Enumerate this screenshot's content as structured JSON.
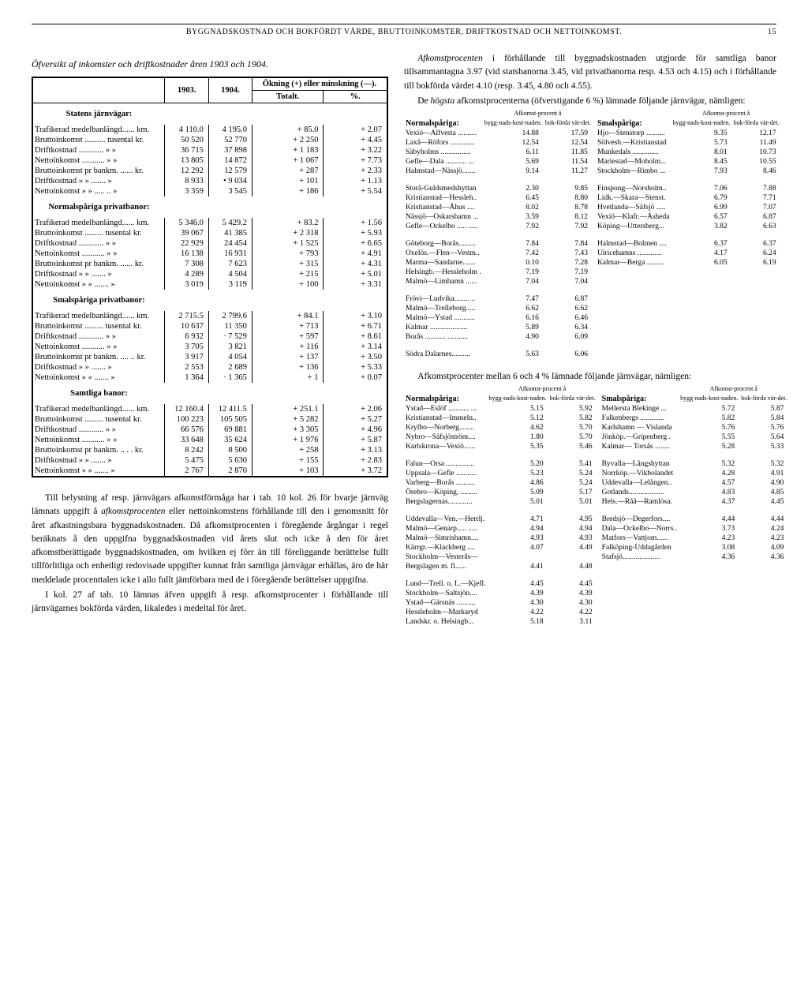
{
  "page": {
    "header": "BYGGNADSKOSTNAD OCH BOKFÖRDT VÄRDE, BRUTTOINKOMSTER, DRIFTKOSTNAD OCH NETTOINKOMST.",
    "page_number": "15"
  },
  "left": {
    "table_title": "Öfversikt af inkomster och driftkostnader åren 1903 och 1904.",
    "col_headers": {
      "y1903": "1903.",
      "y1904": "1904.",
      "change": "Ökning (+) eller minskning (—).",
      "totalt": "Totalt.",
      "pct": "%."
    },
    "sections": [
      {
        "title": "Statens järnvägar:",
        "rows": [
          {
            "label": "Trafikerad medelbanlängd...... km.",
            "v1": "4 110.0",
            "v2": "4 195.0",
            "tot": "+   85.0",
            "pct": "+ 2.07"
          },
          {
            "label": "Bruttoinkomst .......... tusental kr.",
            "v1": "50 520",
            "v2": "52 770",
            "tot": "+ 2 250",
            "pct": "+ 4.45"
          },
          {
            "label": "Driftkostnad ............    »      »",
            "v1": "36 715",
            "v2": "37 898",
            "tot": "+ 1 183",
            "pct": "+ 3.22"
          },
          {
            "label": "Nettoinkomst ...........    »      »",
            "v1": "13 805",
            "v2": "14 872",
            "tot": "+ 1 067",
            "pct": "+ 7.73"
          },
          {
            "label": "Bruttoinkomst pr bankm. ...... kr.",
            "v1": "12 292",
            "v2": "12 579",
            "tot": "+    287",
            "pct": "+ 2.33"
          },
          {
            "label": "Driftkostnad    »    »   .......  »",
            "v1": "8 933",
            "v2": "•  9 034",
            "tot": "+    101",
            "pct": "+ 1.13"
          },
          {
            "label": "Nettoinkomst   »    »   ..... .. »",
            "v1": "3 359",
            "v2": "3 545",
            "tot": "+    186",
            "pct": "+ 5.54"
          }
        ]
      },
      {
        "title": "Normalspåriga privatbanor:",
        "rows": [
          {
            "label": "Trafikerad medelbanlängd...... km.",
            "v1": "5 346.0",
            "v2": "5 429.2",
            "tot": "+   83.2",
            "pct": "+ 1.56"
          },
          {
            "label": "Bruttoinkomst ......... tusental kr.",
            "v1": "39 067",
            "v2": "41 385",
            "tot": "+ 2 318",
            "pct": "+ 5.93"
          },
          {
            "label": "Driftkostnad ............    »      »",
            "v1": "22 929",
            "v2": "24 454",
            "tot": "+ 1 525",
            "pct": "+ 6.65"
          },
          {
            "label": "Nettoinkomst ...........    »      »",
            "v1": "16 138",
            "v2": "16 931",
            "tot": "+    793",
            "pct": "+ 4.91"
          },
          {
            "label": "Bruttoinkomst pr bankm. ...... kr.",
            "v1": "7 308",
            "v2": "7 623",
            "tot": "+    315",
            "pct": "+ 4.31"
          },
          {
            "label": "Driftkostnad    »    »   .......  »",
            "v1": "4 289",
            "v2": "4 504",
            "tot": "+    215",
            "pct": "+ 5.01"
          },
          {
            "label": "Nettoinkomst   »    »   .......  »",
            "v1": "3 019",
            "v2": "3 119",
            "tot": "+    100",
            "pct": "+ 3.31"
          }
        ]
      },
      {
        "title": "Smalspåriga privatbanor:",
        "rows": [
          {
            "label": "Trafikerad medelbanlängd...... km.",
            "v1": "2 715.5",
            "v2": "2 799.6",
            "tot": "+   84.1",
            "pct": "+ 3.10"
          },
          {
            "label": "Bruttoinkomst ......... tusental kr.",
            "v1": "10 637",
            "v2": "11 350",
            "tot": "+    713",
            "pct": "+ 6.71"
          },
          {
            "label": "Driftkostnad ............    »      »",
            "v1": "6 932",
            "v2": "·  7 529",
            "tot": "+    597",
            "pct": "+ 8.61"
          },
          {
            "label": "Nettoinkomst ...........    »      »",
            "v1": "3 705",
            "v2": "3 821",
            "tot": "+    116",
            "pct": "+ 3.14"
          },
          {
            "label": "Bruttoinkomst pr bankm. .... .. kr.",
            "v1": "3 917",
            "v2": "4 054",
            "tot": "+    137",
            "pct": "+ 3.50"
          },
          {
            "label": "Driftkostnad    »    »   .......  »",
            "v1": "2 553",
            "v2": "2 689",
            "tot": "+    136",
            "pct": "+ 5.33"
          },
          {
            "label": "Nettoinkomst   »    »   .......  »",
            "v1": "1 364",
            "v2": "· 1 365",
            "tot": "+      1",
            "pct": "+ 0.07"
          }
        ]
      },
      {
        "title": "Samtliga banor:",
        "rows": [
          {
            "label": "Trafikerad medelbanlängd...... km.",
            "v1": "12 160.4",
            "v2": "12 411.5",
            "tot": "+ 251.1",
            "pct": "+ 2.06"
          },
          {
            "label": "Bruttoinkomst ......... tusental kr.",
            "v1": "100 223",
            "v2": "105 505",
            "tot": "+ 5 282",
            "pct": "+ 5.27"
          },
          {
            "label": "Driftkostnad ............    »      »",
            "v1": "66 576",
            "v2": "69 881",
            "tot": "+ 3 305",
            "pct": "+ 4.96"
          },
          {
            "label": "Nettoinkomst ...........    »      »",
            "v1": "33 648",
            "v2": "35 624",
            "tot": "+ 1 976",
            "pct": "+ 5.87"
          },
          {
            "label": "Bruttoinkomst pr bankm. .. . . kr.",
            "v1": "8 242",
            "v2": "8 500",
            "tot": "+    258",
            "pct": "+ 3.13"
          },
          {
            "label": "Driftkostnad    »    »   .......  »",
            "v1": "5 475",
            "v2": "5 630",
            "tot": "+    155",
            "pct": "+ 2.83"
          },
          {
            "label": "Nettoinkomst   »    »   .......  »",
            "v1": "2 767",
            "v2": "2 870",
            "tot": "+    103",
            "pct": "+ 3.72"
          }
        ]
      }
    ],
    "body": [
      "Till belysning af resp. järnvägars afkomstförmåga har i tab. 10 kol. 26 för hvarje järnväg lämnats uppgift å <i>afkomstprocenten</i> eller nettoinkomstens förhållande till den i genomsnitt för året afkastningsbara byggnadskostnaden. Då afkomstprocenten i föregående årgångar i regel beräknats å den uppgifna byggnadskostnaden vid årets slut och icke å den för året afkomstberättigade byggnadskostnaden, om hvilken ej förr än till föreliggande berättelse fullt tillförlitliga och enhetligt redovisade uppgifter kunnat från samtliga järnvägar erhållas, äro de här meddelade procenttalen icke i allo fullt jämförbara med de i föregående berättelser uppgifna.",
      "I kol. 27 af tab. 10 lämnas äfven uppgift å resp. afkomstprocenter i förhållande till järnvägarnes bokförda värden, likaledes i medeltal för året."
    ]
  },
  "right": {
    "body_top": [
      "<i>Afkomstprocenten</i> i förhållande till byggnadskostnaden utgjorde för samtliga banor tillsammantagna 3.97 (vid statsbanorna 3.45, vid privatbanorna resp. 4.53 och 4.15) och i förhållande till bokförda värdet 4.10 (resp. 3.45, 4.80 och 4.55).",
      "De <i>högsta</i> afkomstprocenterna (öfverstigande 6 %) lämnade följande järnvägar, nämligen:"
    ],
    "rates_headers": {
      "group": "Afkomst-procent å",
      "c1": "bygg-nads-kost-naden.",
      "c2": "bok-förda vär-det.",
      "normal": "Normalspåriga:",
      "smal": "Smalspåriga:"
    },
    "table1_left": [
      {
        "n": "Vexiö—Alfvesta ..........",
        "a": "14.88",
        "b": "17.59"
      },
      {
        "n": "Laxå—Röfors .............",
        "a": "12.54",
        "b": "12.54"
      },
      {
        "n": "Säbyholms ................",
        "a": "6.11",
        "b": "11.85"
      },
      {
        "n": "Gefle—Dala ........... ...",
        "a": "5.69",
        "b": "11.54"
      },
      {
        "n": "Halmstad—Nässjö.......",
        "a": "9.14",
        "b": "11.27"
      },
      {
        "n": "",
        "a": "",
        "b": ""
      },
      {
        "n": "Storå-Guldsmedshyttan",
        "a": "2.30",
        "b": "9.85"
      },
      {
        "n": "Kristianstad—Hessleh..",
        "a": "6.45",
        "b": "8.80"
      },
      {
        "n": "Kristianstad—Åhus ....",
        "a": "8.02",
        "b": "8.78"
      },
      {
        "n": "Nässjö—Oskarshamn ...",
        "a": "3.59",
        "b": "8.12"
      },
      {
        "n": "Gefle—Ockelbo ..... .....",
        "a": "7.92",
        "b": "7.92"
      },
      {
        "n": "",
        "a": "",
        "b": ""
      },
      {
        "n": "Göteborg—Borås.........",
        "a": "7.84",
        "b": "7.84"
      },
      {
        "n": "Oxelös.—Flen—Vestm..",
        "a": "7.42",
        "b": "7.43"
      },
      {
        "n": "Marma—Sandarne.......",
        "a": "0.10",
        "b": "7.28"
      },
      {
        "n": "Helsingb.—Hessleholm .",
        "a": "7.19",
        "b": "7.19"
      },
      {
        "n": "Malmö—Limhamn ......",
        "a": "7.04",
        "b": "7.04"
      },
      {
        "n": "",
        "a": "",
        "b": ""
      },
      {
        "n": "Frövi—Ludvika........ ..",
        "a": "7.47",
        "b": "6.87"
      },
      {
        "n": "Malmö—Trelleborg.....",
        "a": "6.62",
        "b": "6.62"
      },
      {
        "n": "Malmö—Ystad ...........",
        "a": "6.16",
        "b": "6.46"
      },
      {
        "n": "Kalmar ....................",
        "a": "5.89",
        "b": "6.34"
      },
      {
        "n": "Borås ........... ...........",
        "a": "4.90",
        "b": "6.09"
      },
      {
        "n": "",
        "a": "",
        "b": ""
      },
      {
        "n": "Södra Dalarnes..........",
        "a": "5.63",
        "b": "6.06"
      }
    ],
    "table1_right": [
      {
        "n": "Hjo—Stenstorp ..........",
        "a": "9.35",
        "b": "12.17"
      },
      {
        "n": "Sölvesb.—Kristianstad",
        "a": "5.73",
        "b": "11.49"
      },
      {
        "n": "Munkedals ..............",
        "a": "8.01",
        "b": "10.73"
      },
      {
        "n": "Mariestad—Moholm...",
        "a": "8.45",
        "b": "10.55"
      },
      {
        "n": "Stockholm—Rimbo ...",
        "a": "7.93",
        "b": "8.46"
      },
      {
        "n": "",
        "a": "",
        "b": ""
      },
      {
        "n": "Finspong—Norsholm..",
        "a": "7.06",
        "b": "7.88"
      },
      {
        "n": "Lidk.—Skara—Stenst.",
        "a": "6.79",
        "b": "7.71"
      },
      {
        "n": "Hvetlanda—Säfsjö .....",
        "a": "6.99",
        "b": "7.07"
      },
      {
        "n": "Vexiö—Klafr.—Åsheda",
        "a": "6.57",
        "b": "6.87"
      },
      {
        "n": "Köping—Uttersberg...",
        "a": "3.82",
        "b": "6.63"
      },
      {
        "n": "",
        "a": "",
        "b": ""
      },
      {
        "n": "Halmstad—Bolmen ....",
        "a": "6.37",
        "b": "6.37"
      },
      {
        "n": "Ulricehamns .............",
        "a": "4.17",
        "b": "6.24"
      },
      {
        "n": "Kalmar—Berga .........",
        "a": "6.05",
        "b": "6.19"
      }
    ],
    "body_mid": "Afkomstprocenter mellan 6 och 4 % lämnade följande järnvägar, nämligen:",
    "table2_left": [
      {
        "n": "Ystad—Eslöf ........... ...",
        "a": "5.15",
        "b": "5.92"
      },
      {
        "n": "Kristianstad—Immeln..",
        "a": "5.12",
        "b": "5.82"
      },
      {
        "n": "Krylbo—Norberg........",
        "a": "4.62",
        "b": "5.70"
      },
      {
        "n": "Nybro—Säfsjöström....",
        "a": "1.80",
        "b": "5.70"
      },
      {
        "n": "Karlskrona—Vexiö......",
        "a": "5.35",
        "b": "5.46"
      },
      {
        "n": "",
        "a": "",
        "b": ""
      },
      {
        "n": "Falun—Orsa ...............",
        "a": "5.20",
        "b": "5.41"
      },
      {
        "n": "Uppsala—Gefle ...........",
        "a": "5.23",
        "b": "5.24"
      },
      {
        "n": "Varberg—Borås ..........",
        "a": "4.86",
        "b": "5.24"
      },
      {
        "n": "Örebro—Köping. .........",
        "a": "5.09",
        "b": "5.17"
      },
      {
        "n": "Bergslagernas.............",
        "a": "5.01",
        "b": "5.01"
      },
      {
        "n": "",
        "a": "",
        "b": ""
      },
      {
        "n": "Uddevalla—Ven.—Herrlj.",
        "a": "4.71",
        "b": "4.95"
      },
      {
        "n": "Malmö—Genarp..... .....",
        "a": "4.94",
        "b": "4.94"
      },
      {
        "n": "Malmö—Simrishamn....",
        "a": "4.93",
        "b": "4.93"
      },
      {
        "n": "Kärrgr.—Klackberg ....",
        "a": "4.07",
        "b": "4.49"
      },
      {
        "n": "Stockholm—Vesterås—",
        "a": "",
        "b": ""
      },
      {
        "n": "  Bergslagen m. fl......",
        "a": "4.41",
        "b": "4.48"
      },
      {
        "n": "",
        "a": "",
        "b": ""
      },
      {
        "n": "Lund—Trell. o. L.—Kjefl.",
        "a": "4.45",
        "b": "4.45"
      },
      {
        "n": "Stockholm—Saltsjön....",
        "a": "4.39",
        "b": "4.39"
      },
      {
        "n": "Ystad—Gärsnäs ..........",
        "a": "4.30",
        "b": "4.30"
      },
      {
        "n": "Hessleholm—Markaryd",
        "a": "4.22",
        "b": "4.22"
      },
      {
        "n": "Landskr. o. Helsingb...",
        "a": "5.18",
        "b": "3.11"
      }
    ],
    "table2_right": [
      {
        "n": "Mellersta Blekinge ...",
        "a": "5.72",
        "b": "5.87"
      },
      {
        "n": "Falkenbergs .............",
        "a": "5.82",
        "b": "5.84"
      },
      {
        "n": "Karlshamn — Vislanda",
        "a": "5.76",
        "b": "5.76"
      },
      {
        "n": "Jönköp.—Gripenberg .",
        "a": "5.55",
        "b": "5.64"
      },
      {
        "n": "Kalmar— Torsås ........",
        "a": "5.28",
        "b": "5.33"
      },
      {
        "n": "",
        "a": "",
        "b": ""
      },
      {
        "n": "Byvalla—Långshyttan",
        "a": "5.32",
        "b": "5.32"
      },
      {
        "n": "Norrköp.—Vikbolandet",
        "a": "4.28",
        "b": "4.91"
      },
      {
        "n": "Uddevalla—Lelången..",
        "a": "4.57",
        "b": "4.90"
      },
      {
        "n": "Gotlands...................",
        "a": "4.83",
        "b": "4.85"
      },
      {
        "n": "Hels.—Råå—Ramlösa.",
        "a": "4.37",
        "b": "4.45"
      },
      {
        "n": "",
        "a": "",
        "b": ""
      },
      {
        "n": "Bredsjö—Degerfors....",
        "a": "4.44",
        "b": "4.44"
      },
      {
        "n": "Dala—Ockelbo—Norrs..",
        "a": "3.73",
        "b": "4.24"
      },
      {
        "n": "Matfors—Vattjom......",
        "a": "4.23",
        "b": "4.23"
      },
      {
        "n": "Falköping-Uddagården",
        "a": "3.08",
        "b": "4.09"
      },
      {
        "n": "Stafsjö....................",
        "a": "4.36",
        "b": "4.36"
      }
    ]
  }
}
